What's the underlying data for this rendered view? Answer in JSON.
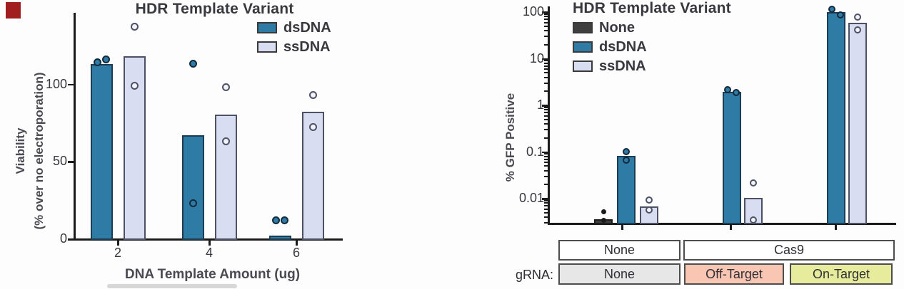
{
  "figure": {
    "background": "#fdfdfd"
  },
  "red_marker": {
    "color": "#a01d20"
  },
  "chart_data": [
    {
      "type": "bar",
      "title": "HDR Template Variant",
      "xlabel": "DNA Template Amount (ug)",
      "ylabel_lines": [
        "Viability",
        "(% over no electroporation)"
      ],
      "yscale": "linear",
      "ylim": [
        0,
        146
      ],
      "grid": false,
      "legend_position": "top-right",
      "yticks": [
        {
          "label": "0",
          "value": 0
        },
        {
          "label": "50",
          "value": 50
        },
        {
          "label": "100",
          "value": 100
        }
      ],
      "categories": [
        "2",
        "4",
        "6"
      ],
      "series": [
        {
          "name": "dsDNA",
          "color": "#2e7ba6",
          "border": "#1c3c53",
          "point_style": "filled",
          "values": [
            113,
            67,
            2
          ],
          "points": [
            [
              114,
              116
            ],
            [
              113,
              23
            ],
            [
              3,
              2
            ]
          ]
        },
        {
          "name": "ssDNA",
          "color": "#d8ddf1",
          "border": "#4c5163",
          "point_style": "open",
          "values": [
            118,
            80,
            82
          ],
          "points": [
            [
              137,
              99
            ],
            [
              98,
              63
            ],
            [
              93,
              72
            ]
          ]
        }
      ]
    },
    {
      "type": "bar",
      "title": "HDR Template Variant",
      "ylabel": "% GFP Positive",
      "yscale": "log",
      "ylim": [
        0.003,
        100
      ],
      "grid": false,
      "legend_position": "top-left",
      "yticks": [
        {
          "label": "100",
          "value": 100
        },
        {
          "label": "10",
          "value": 10
        },
        {
          "label": "1",
          "value": 1
        },
        {
          "label": "0.1",
          "value": 0.1
        },
        {
          "label": "0.01",
          "value": 0.01
        }
      ],
      "groups": [
        {
          "protein": "None",
          "grna": "None",
          "grna_color": "#e7e7e7"
        },
        {
          "protein": "Cas9",
          "grna": "Off-Target",
          "grna_color": "#f9c6b4"
        },
        {
          "protein": "Cas9",
          "grna": "On-Target",
          "grna_color": "#e6ec9b"
        }
      ],
      "protein_boxes": [
        {
          "label": "None"
        },
        {
          "label": "Cas9"
        }
      ],
      "grna_row_label": "gRNA:",
      "series": [
        {
          "name": "None",
          "color": "#3f3f3f",
          "border": "#1e1e1e",
          "point_style": "dot",
          "values": [
            0.0035,
            null,
            null
          ],
          "points": [
            [
              0.005,
              0.0028
            ],
            [],
            []
          ]
        },
        {
          "name": "dsDNA",
          "color": "#2e7ba6",
          "border": "#1c3c53",
          "point_style": "filled",
          "values": [
            0.08,
            1.9,
            97
          ],
          "points": [
            [
              0.1,
              0.065
            ],
            [
              2.1,
              1.8
            ],
            [
              110,
              85
            ]
          ]
        },
        {
          "name": "ssDNA",
          "color": "#d8ddf1",
          "border": "#4c5163",
          "point_style": "open",
          "values": [
            0.0065,
            0.01,
            57
          ],
          "points": [
            [
              0.009,
              0.0055
            ],
            [
              0.021,
              0.0034
            ],
            [
              75,
              40
            ]
          ]
        }
      ]
    }
  ]
}
